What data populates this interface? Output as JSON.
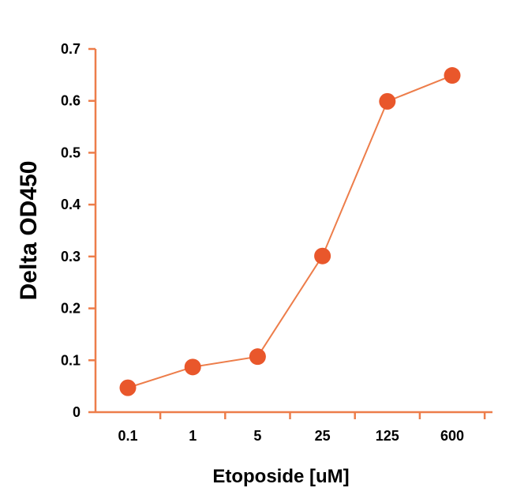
{
  "chart_data": {
    "type": "line",
    "title": "",
    "xlabel": "Etoposide [uM]",
    "ylabel": "Delta OD450",
    "categories": [
      "0.1",
      "1",
      "5",
      "25",
      "125",
      "600"
    ],
    "series": [
      {
        "values": [
          0.047,
          0.087,
          0.107,
          0.301,
          0.599,
          0.649
        ]
      }
    ],
    "ylim": [
      0,
      0.7
    ],
    "yticks": [
      "0",
      "0.1",
      "0.2",
      "0.3",
      "0.4",
      "0.5",
      "0.6",
      "0.7"
    ],
    "grid": false,
    "legend": "none",
    "colors": {
      "axis": "#ED7D4A",
      "line": "#ED7D4A",
      "marker": "#E9572B",
      "text": "#000000"
    }
  }
}
